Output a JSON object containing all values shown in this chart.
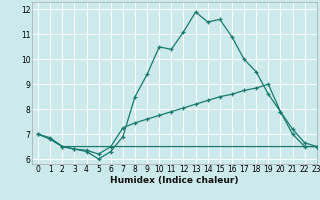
{
  "title": "",
  "xlabel": "Humidex (Indice chaleur)",
  "xlim": [
    -0.5,
    23
  ],
  "ylim": [
    5.8,
    12.3
  ],
  "yticks": [
    6,
    7,
    8,
    9,
    10,
    11,
    12
  ],
  "xticks": [
    0,
    1,
    2,
    3,
    4,
    5,
    6,
    7,
    8,
    9,
    10,
    11,
    12,
    13,
    14,
    15,
    16,
    17,
    18,
    19,
    20,
    21,
    22,
    23
  ],
  "bg_color": "#cce9ec",
  "line_color": "#1a7a6e",
  "grid_color": "#ffffff",
  "line1_x": [
    0,
    1,
    2,
    3,
    4,
    5,
    6,
    7,
    8,
    9,
    10,
    11,
    12,
    13,
    14,
    15,
    16,
    17,
    18,
    19,
    20,
    21,
    22,
    23
  ],
  "line1_y": [
    7.0,
    6.8,
    6.5,
    6.4,
    6.3,
    6.0,
    6.3,
    6.9,
    8.5,
    9.4,
    10.5,
    10.4,
    11.1,
    11.9,
    11.5,
    11.6,
    10.9,
    10.0,
    9.5,
    8.6,
    7.9,
    7.0,
    6.5,
    6.5
  ],
  "line2_x": [
    0,
    1,
    2,
    3,
    4,
    5,
    6,
    7,
    8,
    9,
    10,
    11,
    12,
    13,
    14,
    15,
    16,
    17,
    18,
    19,
    20,
    21,
    22,
    23
  ],
  "line2_y": [
    7.0,
    6.85,
    6.5,
    6.4,
    6.35,
    6.2,
    6.5,
    7.25,
    7.45,
    7.6,
    7.75,
    7.9,
    8.05,
    8.2,
    8.35,
    8.5,
    8.6,
    8.75,
    8.85,
    9.0,
    7.9,
    7.2,
    6.65,
    6.5
  ],
  "line3_x": [
    0,
    1,
    2,
    3,
    10,
    20,
    22,
    23
  ],
  "line3_y": [
    7.0,
    6.8,
    6.5,
    6.5,
    6.5,
    6.5,
    6.5,
    6.5
  ]
}
